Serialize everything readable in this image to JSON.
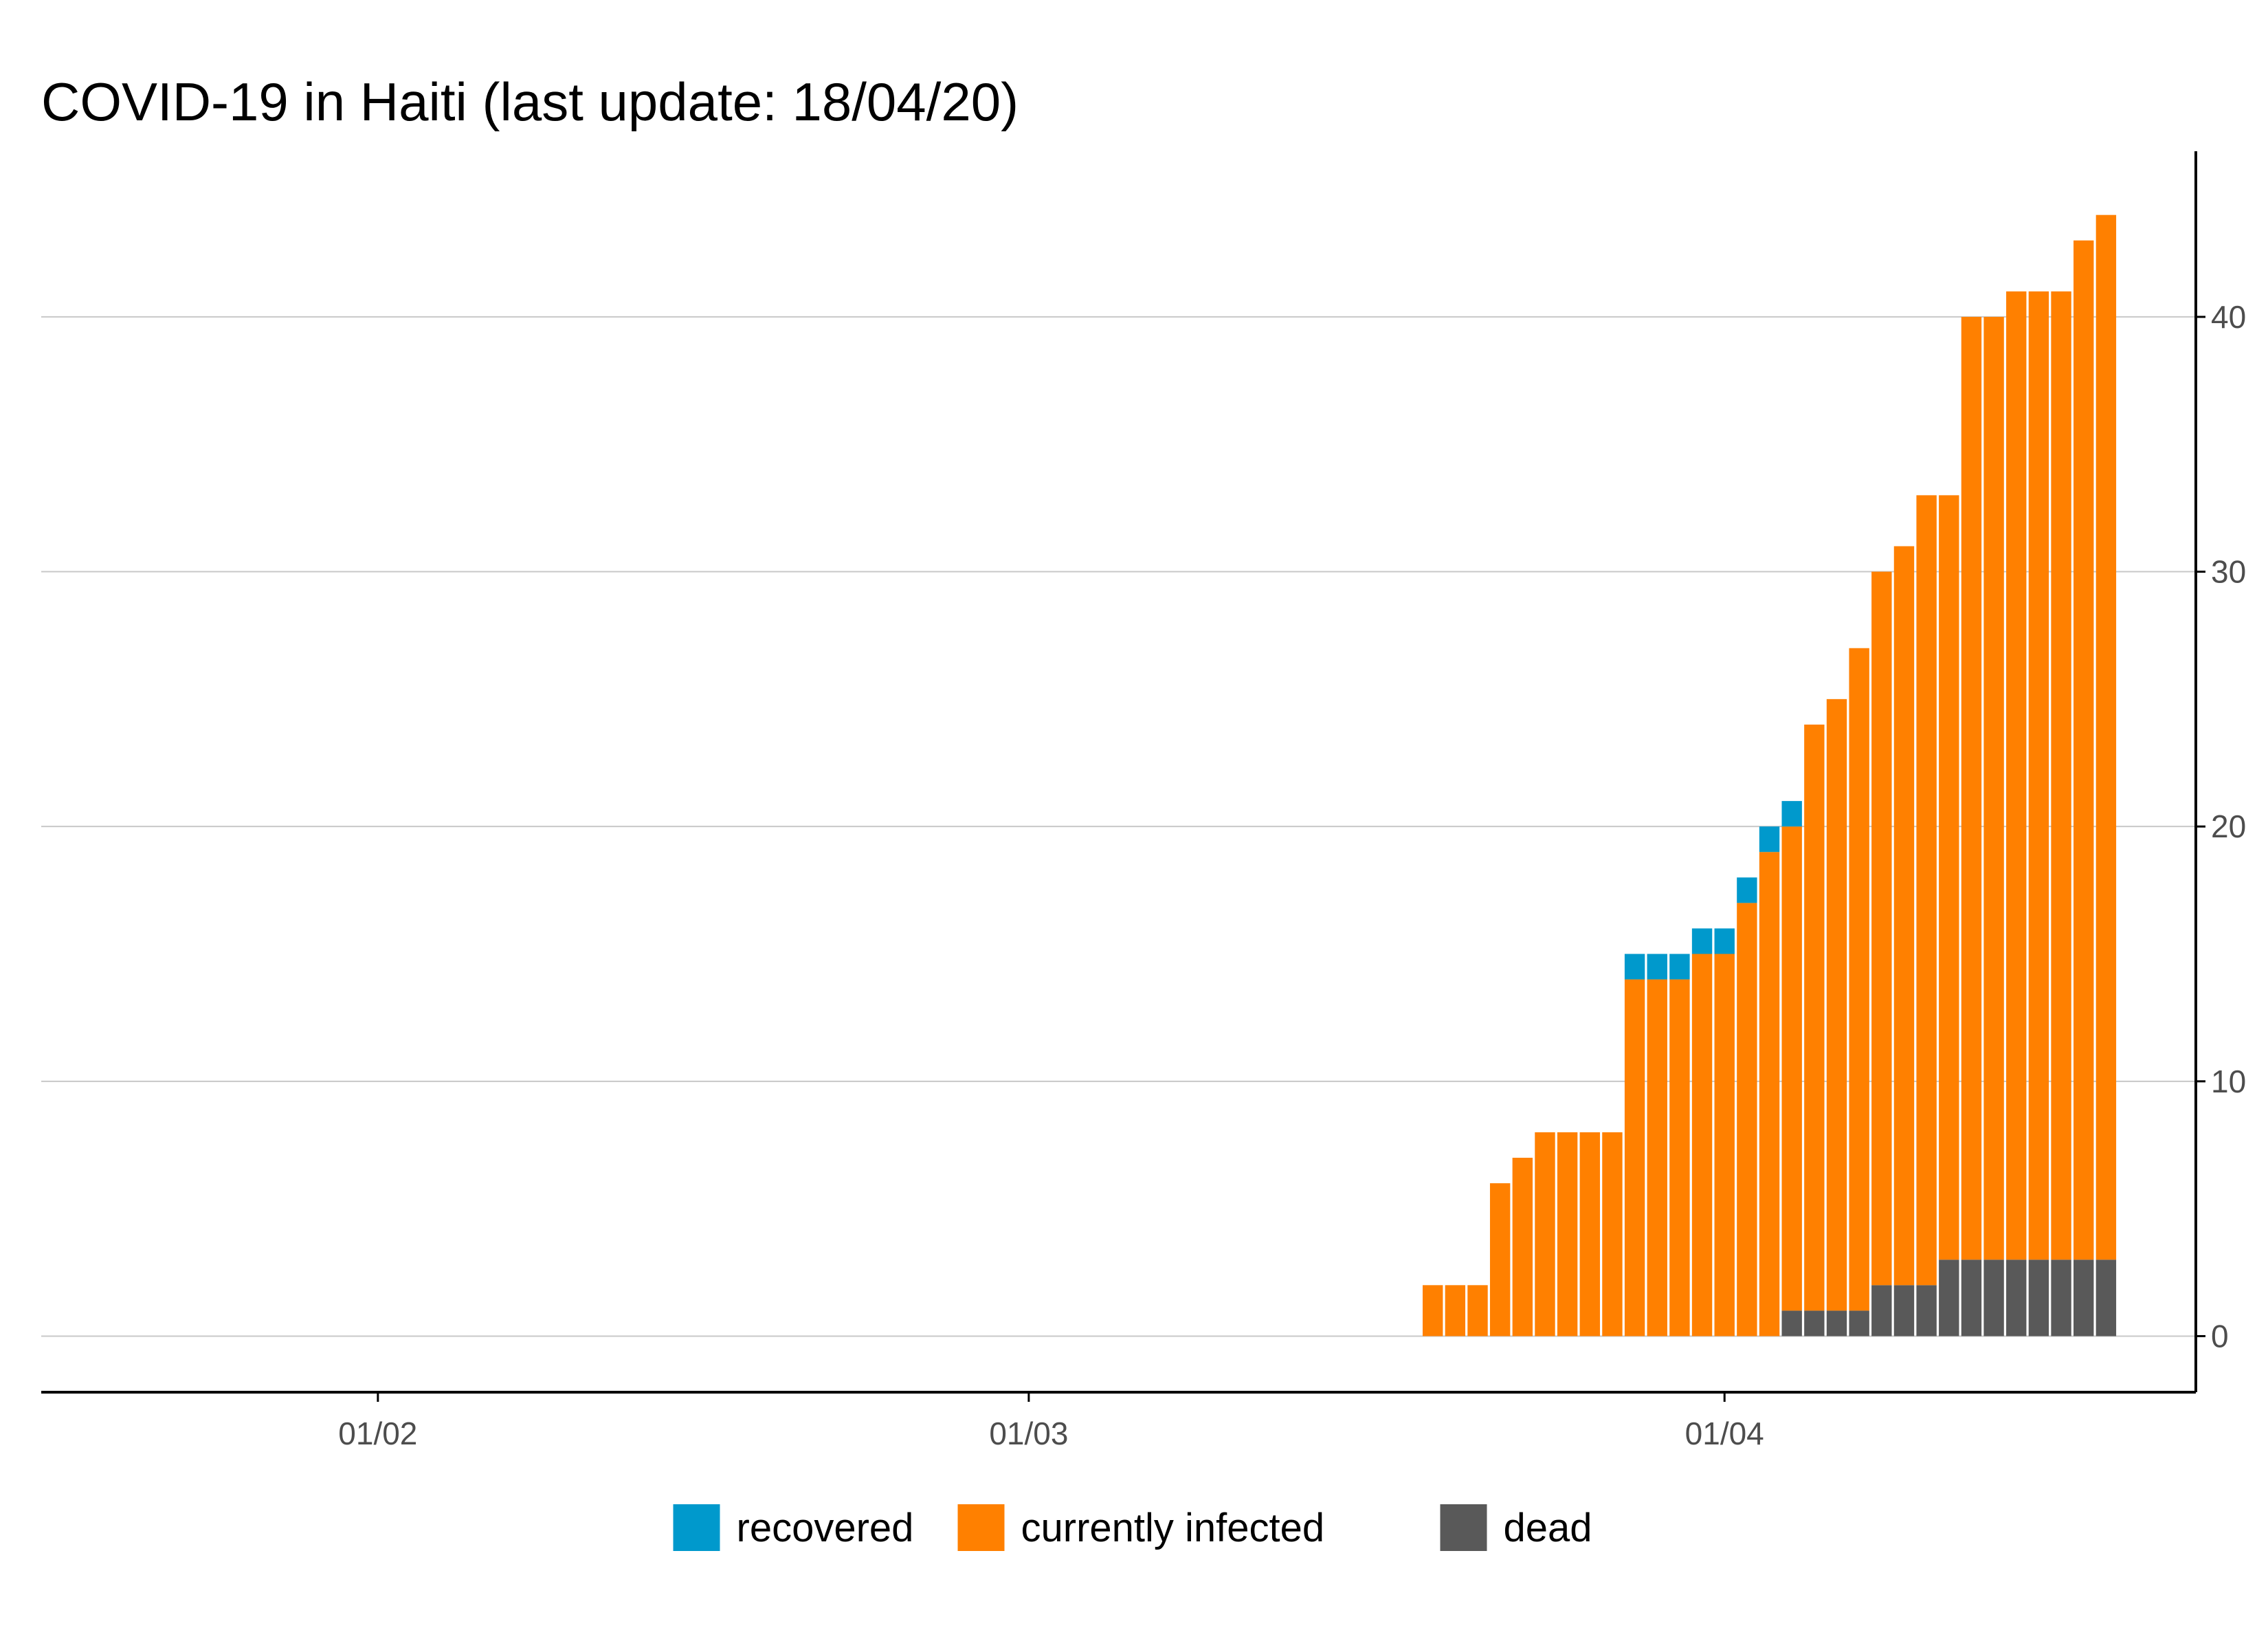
{
  "chart_data": {
    "type": "bar",
    "stacked": true,
    "title": "COVID-19 in Haiti (last update: 18/04/20)",
    "xlabel": "",
    "ylabel": "",
    "x_axis": {
      "type": "date",
      "tick_labels": [
        "01/02",
        "01/03",
        "01/04"
      ],
      "tick_dates": [
        "2020-02-01",
        "2020-03-01",
        "2020-04-01"
      ],
      "range": [
        "2020-01-17",
        "2020-04-22"
      ]
    },
    "y_axis": {
      "position": "right",
      "ticks": [
        0,
        10,
        20,
        30,
        40
      ],
      "ylim": [
        -2.2,
        46.5
      ]
    },
    "grid": "horizontal",
    "legend_position": "bottom",
    "x": [
      "2020-03-19",
      "2020-03-20",
      "2020-03-21",
      "2020-03-22",
      "2020-03-23",
      "2020-03-24",
      "2020-03-25",
      "2020-03-26",
      "2020-03-27",
      "2020-03-28",
      "2020-03-29",
      "2020-03-30",
      "2020-03-31",
      "2020-04-01",
      "2020-04-02",
      "2020-04-03",
      "2020-04-04",
      "2020-04-05",
      "2020-04-06",
      "2020-04-07",
      "2020-04-08",
      "2020-04-09",
      "2020-04-10",
      "2020-04-11",
      "2020-04-12",
      "2020-04-13",
      "2020-04-14",
      "2020-04-15",
      "2020-04-16",
      "2020-04-17",
      "2020-04-18"
    ],
    "series": [
      {
        "name": "dead",
        "color": "#595959",
        "values": [
          0,
          0,
          0,
          0,
          0,
          0,
          0,
          0,
          0,
          0,
          0,
          0,
          0,
          0,
          0,
          0,
          1,
          1,
          1,
          1,
          2,
          2,
          2,
          3,
          3,
          3,
          3,
          3,
          3,
          3,
          3
        ]
      },
      {
        "name": "currently infected",
        "color": "#ff8000",
        "values": [
          2,
          2,
          2,
          6,
          7,
          8,
          8,
          8,
          8,
          14,
          14,
          14,
          15,
          15,
          17,
          19,
          19,
          23,
          24,
          26,
          28,
          29,
          31,
          30,
          37,
          37,
          38,
          38,
          38,
          40,
          41
        ]
      },
      {
        "name": "recovered",
        "color": "#0099cc",
        "values": [
          0,
          0,
          0,
          0,
          0,
          0,
          0,
          0,
          0,
          1,
          1,
          1,
          1,
          1,
          1,
          1,
          1,
          0,
          0,
          0,
          0,
          0,
          0,
          0,
          0,
          0,
          0,
          0,
          0,
          0,
          0
        ]
      }
    ],
    "legend": [
      {
        "name": "recovered",
        "color": "#0099cc"
      },
      {
        "name": "currently infected",
        "color": "#ff8000"
      },
      {
        "name": "dead",
        "color": "#595959"
      }
    ],
    "colors": {
      "gridline": "#c8c8c8",
      "axis": "#000000",
      "tick_text": "#4d4d4d"
    }
  }
}
